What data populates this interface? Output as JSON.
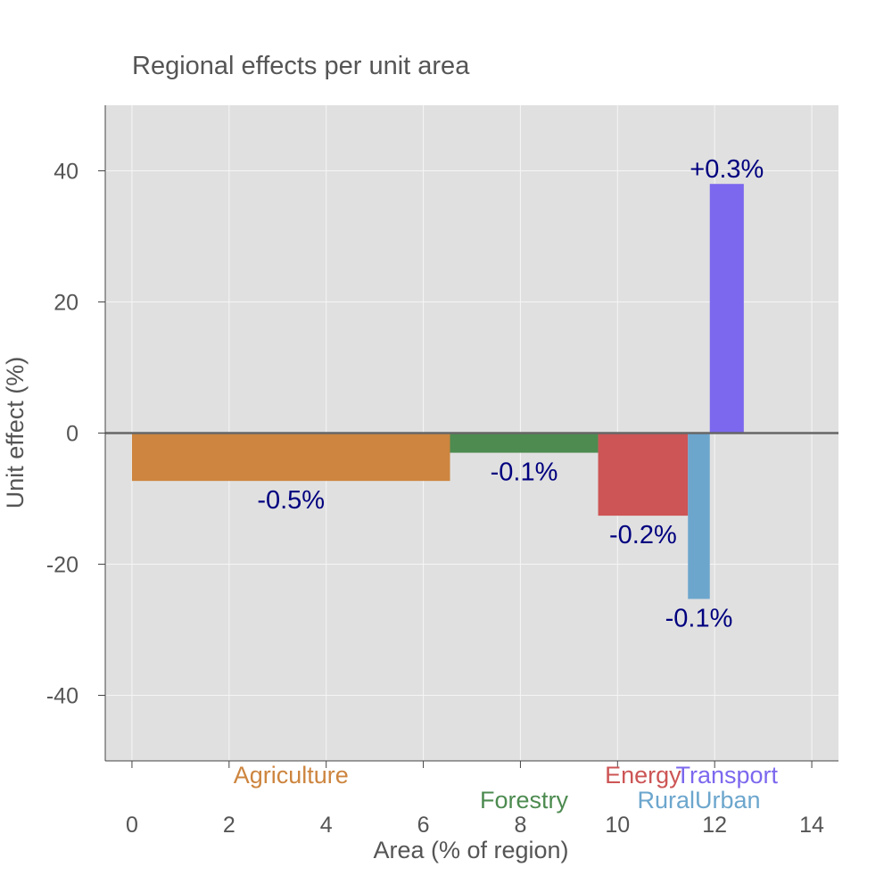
{
  "chart_data": {
    "type": "bar",
    "title": "Regional effects per unit area",
    "xlabel": "Area (% of region)",
    "ylabel": "Unit effect (%)",
    "xlim": [
      -0.55,
      14.55
    ],
    "ylim": [
      -50,
      50
    ],
    "xticks": [
      0,
      2,
      4,
      6,
      8,
      10,
      12,
      14
    ],
    "yticks": [
      -40,
      -20,
      0,
      20,
      40
    ],
    "grid": true,
    "bars": [
      {
        "category": "Agriculture",
        "x_start": 0.0,
        "x_end": 6.55,
        "value": -7.3,
        "label": "-0.5%",
        "color": "#cd853f"
      },
      {
        "category": "Forestry",
        "x_start": 6.55,
        "x_end": 9.6,
        "value": -3.0,
        "label": "-0.1%",
        "color": "#4d8b50"
      },
      {
        "category": "Energy",
        "x_start": 9.6,
        "x_end": 11.45,
        "value": -12.6,
        "label": "-0.2%",
        "color": "#cd5555"
      },
      {
        "category": "RuralUrban",
        "x_start": 11.45,
        "x_end": 11.9,
        "value": -25.3,
        "label": "-0.1%",
        "color": "#6ca6cd"
      },
      {
        "category": "Transport",
        "x_start": 11.9,
        "x_end": 12.6,
        "value": 38.0,
        "label": "+0.3%",
        "color": "#7b68ee"
      }
    ]
  }
}
